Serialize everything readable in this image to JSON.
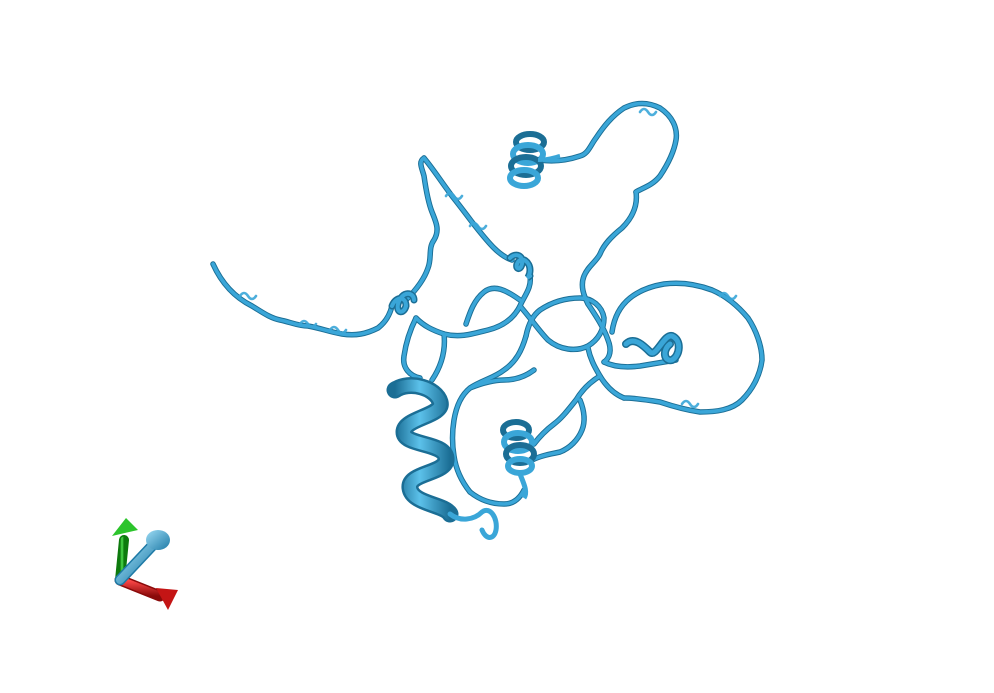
{
  "scene": {
    "background": "#ffffff",
    "structure_color": "#3aa6d8",
    "structure_shade": "#1b6e95",
    "structure_highlight": "#8fd3f2",
    "axes": {
      "x_color": "#d01818",
      "y_color": "#1ab21a",
      "z_color": "#3aa6d8"
    }
  }
}
